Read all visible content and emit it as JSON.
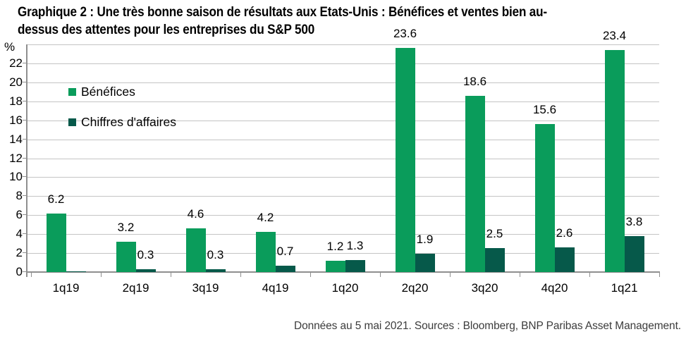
{
  "title": {
    "lines": [
      "Graphique 2 : Une très bonne saison de résultats aux Etats-Unis : Bénéfices et ventes bien au-",
      "dessus des attentes pour les entreprises du S&P 500"
    ]
  },
  "footer": "Données au 5 mai 2021. Sources : Bloomberg, BNP Paribas Asset Management.",
  "chart_data": {
    "type": "bar",
    "title": "Graphique 2 : Une très bonne saison de résultats aux Etats-Unis : Bénéfices et ventes bien au-dessus des attentes pour les entreprises du S&P 500",
    "categories": [
      "1q19",
      "2q19",
      "3q19",
      "4q19",
      "1q20",
      "2q20",
      "3q20",
      "4q20",
      "1q21"
    ],
    "series": [
      {
        "name": "Bénéfices",
        "color": "#0a9c5b",
        "values": [
          6.2,
          3.2,
          4.6,
          4.2,
          1.2,
          23.6,
          18.6,
          15.6,
          23.4
        ],
        "value_labels": [
          "6.2",
          "3.2",
          "4.6",
          "4.2",
          "1.2",
          "23.6",
          "18.6",
          "15.6",
          "23.4"
        ]
      },
      {
        "name": "Chiffres d'affaires",
        "color": "#06594a",
        "values": [
          0.1,
          0.3,
          0.3,
          0.7,
          1.3,
          1.9,
          2.5,
          2.6,
          3.8
        ],
        "value_labels": [
          "",
          "0.3",
          "0.3",
          "0.7",
          "1.3",
          "1.9",
          "2.5",
          "2.6",
          "3.8"
        ]
      }
    ],
    "xlabel": "",
    "ylabel": "%",
    "ylim": [
      0,
      24
    ],
    "ytick_step": 2,
    "ytick_labels": [
      "0",
      "2",
      "4",
      "6",
      "8",
      "10",
      "12",
      "14",
      "16",
      "18",
      "20",
      "22"
    ],
    "grid": true,
    "legend_position": "upper-left-inside"
  },
  "colors": {
    "gridline": "#c4c4c4",
    "axis": "#8f8f8f",
    "bar_green": "#0a9c5b",
    "bar_dark_green": "#06594a",
    "footer_text": "#3c3c3c"
  }
}
